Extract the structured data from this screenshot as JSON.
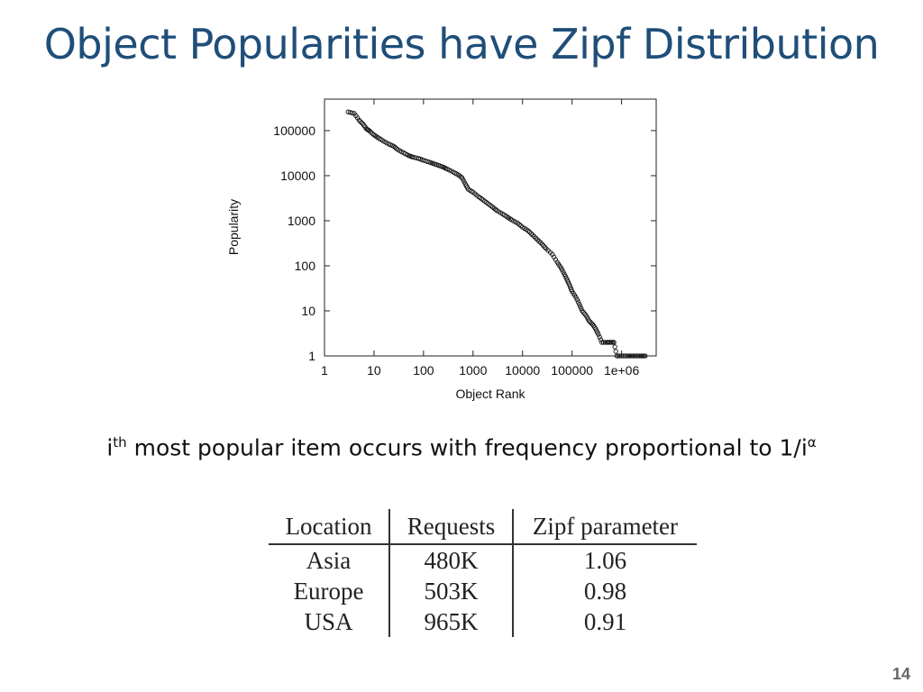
{
  "slide": {
    "title": "Object Popularities have Zipf Distribution",
    "caption_prefix": "i",
    "caption_sup": "th",
    "caption_text": " most popular item occurs with frequency proportional to 1/i",
    "caption_alpha": "α",
    "page_number": "14"
  },
  "chart_data": {
    "type": "scatter",
    "xlabel": "Object Rank",
    "ylabel": "Popularity",
    "xscale": "log",
    "yscale": "log",
    "xlim": [
      1,
      5000000
    ],
    "ylim": [
      1,
      500000
    ],
    "x_ticks": [
      {
        "value": 1,
        "label": "1"
      },
      {
        "value": 10,
        "label": "10"
      },
      {
        "value": 100,
        "label": "100"
      },
      {
        "value": 1000,
        "label": "1000"
      },
      {
        "value": 10000,
        "label": "10000"
      },
      {
        "value": 100000,
        "label": "100000"
      },
      {
        "value": 1000000,
        "label": "1e+06"
      }
    ],
    "y_ticks": [
      {
        "value": 1,
        "label": "1"
      },
      {
        "value": 10,
        "label": "10"
      },
      {
        "value": 100,
        "label": "100"
      },
      {
        "value": 1000,
        "label": "1000"
      },
      {
        "value": 10000,
        "label": "10000"
      },
      {
        "value": 100000,
        "label": "100000"
      }
    ],
    "series": [
      {
        "marker": "open-circle",
        "points": [
          [
            3,
            260000
          ],
          [
            4,
            240000
          ],
          [
            5,
            170000
          ],
          [
            6,
            140000
          ],
          [
            7,
            110000
          ],
          [
            8,
            100000
          ],
          [
            10,
            80000
          ],
          [
            12,
            70000
          ],
          [
            15,
            60000
          ],
          [
            20,
            50000
          ],
          [
            25,
            45000
          ],
          [
            30,
            38000
          ],
          [
            40,
            32000
          ],
          [
            50,
            28000
          ],
          [
            60,
            26000
          ],
          [
            80,
            24000
          ],
          [
            100,
            22000
          ],
          [
            130,
            20000
          ],
          [
            160,
            18500
          ],
          [
            200,
            17000
          ],
          [
            250,
            15500
          ],
          [
            300,
            14000
          ],
          [
            400,
            12000
          ],
          [
            500,
            10500
          ],
          [
            600,
            9000
          ],
          [
            700,
            6500
          ],
          [
            800,
            5000
          ],
          [
            1000,
            4300
          ],
          [
            1300,
            3400
          ],
          [
            1600,
            2900
          ],
          [
            2000,
            2400
          ],
          [
            2500,
            2000
          ],
          [
            3000,
            1700
          ],
          [
            4000,
            1400
          ],
          [
            5000,
            1200
          ],
          [
            6000,
            1050
          ],
          [
            8000,
            880
          ],
          [
            10000,
            720
          ],
          [
            13000,
            600
          ],
          [
            16000,
            480
          ],
          [
            20000,
            380
          ],
          [
            25000,
            300
          ],
          [
            30000,
            240
          ],
          [
            40000,
            180
          ],
          [
            50000,
            120
          ],
          [
            60000,
            90
          ],
          [
            70000,
            65
          ],
          [
            80000,
            48
          ],
          [
            90000,
            36
          ],
          [
            100000,
            27
          ],
          [
            120000,
            20
          ],
          [
            140000,
            14
          ],
          [
            160000,
            10
          ],
          [
            190000,
            8
          ],
          [
            220000,
            6
          ],
          [
            260000,
            5
          ],
          [
            300000,
            4
          ],
          [
            340000,
            3
          ],
          [
            400000,
            2
          ],
          [
            500000,
            2
          ],
          [
            600000,
            2
          ],
          [
            700000,
            2
          ],
          [
            800000,
            1
          ],
          [
            1000000,
            1
          ],
          [
            1300000,
            1
          ],
          [
            1600000,
            1
          ],
          [
            2000000,
            1
          ],
          [
            2500000,
            1
          ],
          [
            3000000,
            1
          ]
        ]
      }
    ]
  },
  "table": {
    "headers": [
      "Location",
      "Requests",
      "Zipf parameter"
    ],
    "rows": [
      [
        "Asia",
        "480K",
        "1.06"
      ],
      [
        "Europe",
        "503K",
        "0.98"
      ],
      [
        "USA",
        "965K",
        "0.91"
      ]
    ]
  }
}
